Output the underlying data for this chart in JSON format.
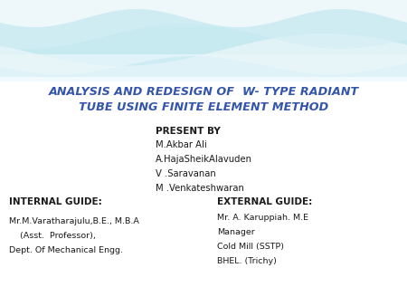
{
  "title_line1": "ANALYSIS AND REDESIGN OF  W- TYPE RADIANT",
  "title_line2": "TUBE USING FINITE ELEMENT METHOD",
  "title_color": "#3355AA",
  "background_color": "#FFFFFF",
  "present_by_label": "PRESENT BY",
  "presenters": [
    "M.Akbar Ali",
    "A.HajaSheikAlavuden",
    "V .Saravanan",
    "M .Venkateshwaran"
  ],
  "internal_guide_label": "INTERNAL GUIDE:",
  "internal_guide_lines": [
    "Mr.M.Varatharajulu,B.E., M.B.A",
    "    (Asst.  Professor),",
    "Dept. Of Mechanical Engg."
  ],
  "external_guide_label": "EXTERNAL GUIDE:",
  "external_guide_lines": [
    "Mr. A. Karuppiah. M.E",
    "Manager",
    "Cold Mill (SSTP)",
    "BHEL. (Trichy)"
  ]
}
